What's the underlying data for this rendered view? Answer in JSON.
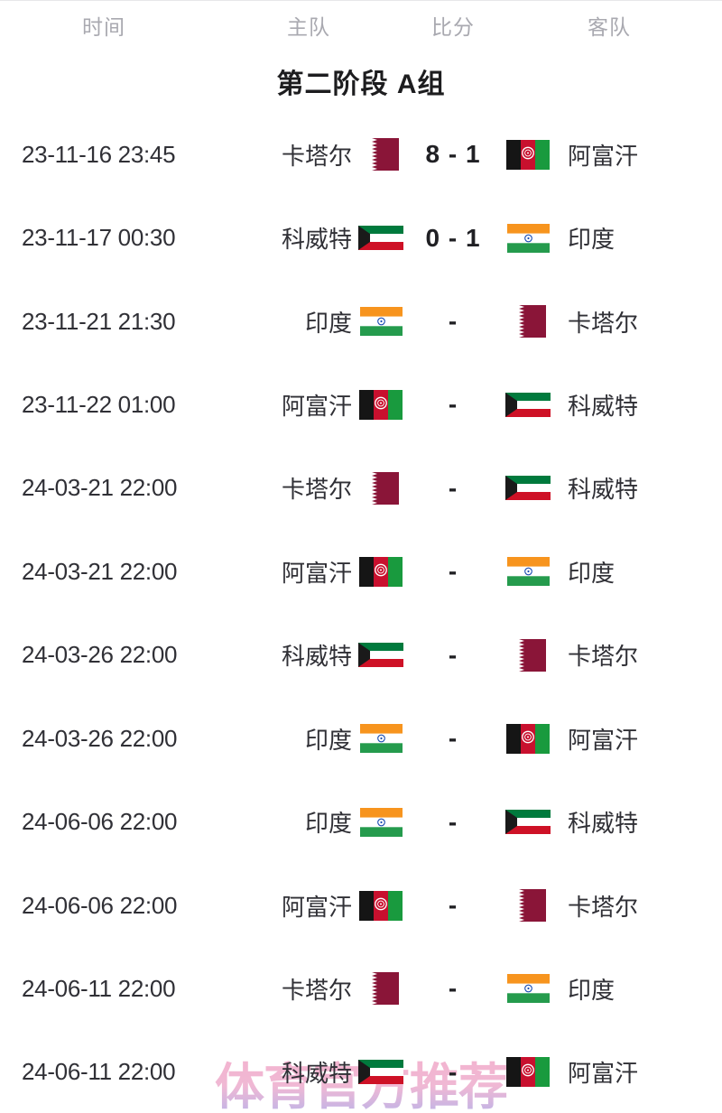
{
  "header": {
    "columns": {
      "time": "时间",
      "home": "主队",
      "score": "比分",
      "away": "客队"
    }
  },
  "section": {
    "title": "第二阶段 A组"
  },
  "watermark": {
    "text": "体育官方推荐"
  },
  "colors": {
    "header_text": "#a9a9b0",
    "title_text": "#1d1d1f",
    "row_text": "#303036",
    "score_text": "#202024",
    "watermark_top": "#f2a6c5",
    "watermark_bottom": "#aba7e6"
  },
  "flags": {
    "qa": {
      "label": "qatar-flag",
      "maroon": "#8a1538",
      "white": "#ffffff"
    },
    "kw": {
      "label": "kuwait-flag",
      "green": "#007a3d",
      "white": "#ffffff",
      "red": "#ce1126",
      "black": "#1a1a1a"
    },
    "in": {
      "label": "india-flag",
      "saffron": "#f7941e",
      "white": "#ffffff",
      "green": "#259b4d",
      "navy": "#1b4db3"
    },
    "af": {
      "label": "afghanistan-flag",
      "black": "#151515",
      "red": "#c8102e",
      "green": "#199a3e",
      "white": "#ffffff"
    }
  },
  "matches": [
    {
      "time": "23-11-16 23:45",
      "home": "卡塔尔",
      "home_flag": "qa",
      "score": "8 - 1",
      "away": "阿富汗",
      "away_flag": "af"
    },
    {
      "time": "23-11-17 00:30",
      "home": "科威特",
      "home_flag": "kw",
      "score": "0 - 1",
      "away": "印度",
      "away_flag": "in"
    },
    {
      "time": "23-11-21 21:30",
      "home": "印度",
      "home_flag": "in",
      "score": "-",
      "away": "卡塔尔",
      "away_flag": "qa"
    },
    {
      "time": "23-11-22 01:00",
      "home": "阿富汗",
      "home_flag": "af",
      "score": "-",
      "away": "科威特",
      "away_flag": "kw"
    },
    {
      "time": "24-03-21 22:00",
      "home": "卡塔尔",
      "home_flag": "qa",
      "score": "-",
      "away": "科威特",
      "away_flag": "kw"
    },
    {
      "time": "24-03-21 22:00",
      "home": "阿富汗",
      "home_flag": "af",
      "score": "-",
      "away": "印度",
      "away_flag": "in"
    },
    {
      "time": "24-03-26 22:00",
      "home": "科威特",
      "home_flag": "kw",
      "score": "-",
      "away": "卡塔尔",
      "away_flag": "qa"
    },
    {
      "time": "24-03-26 22:00",
      "home": "印度",
      "home_flag": "in",
      "score": "-",
      "away": "阿富汗",
      "away_flag": "af"
    },
    {
      "time": "24-06-06 22:00",
      "home": "印度",
      "home_flag": "in",
      "score": "-",
      "away": "科威特",
      "away_flag": "kw"
    },
    {
      "time": "24-06-06 22:00",
      "home": "阿富汗",
      "home_flag": "af",
      "score": "-",
      "away": "卡塔尔",
      "away_flag": "qa"
    },
    {
      "time": "24-06-11 22:00",
      "home": "卡塔尔",
      "home_flag": "qa",
      "score": "-",
      "away": "印度",
      "away_flag": "in"
    },
    {
      "time": "24-06-11 22:00",
      "home": "科威特",
      "home_flag": "kw",
      "score": "-",
      "away": "阿富汗",
      "away_flag": "af"
    }
  ]
}
